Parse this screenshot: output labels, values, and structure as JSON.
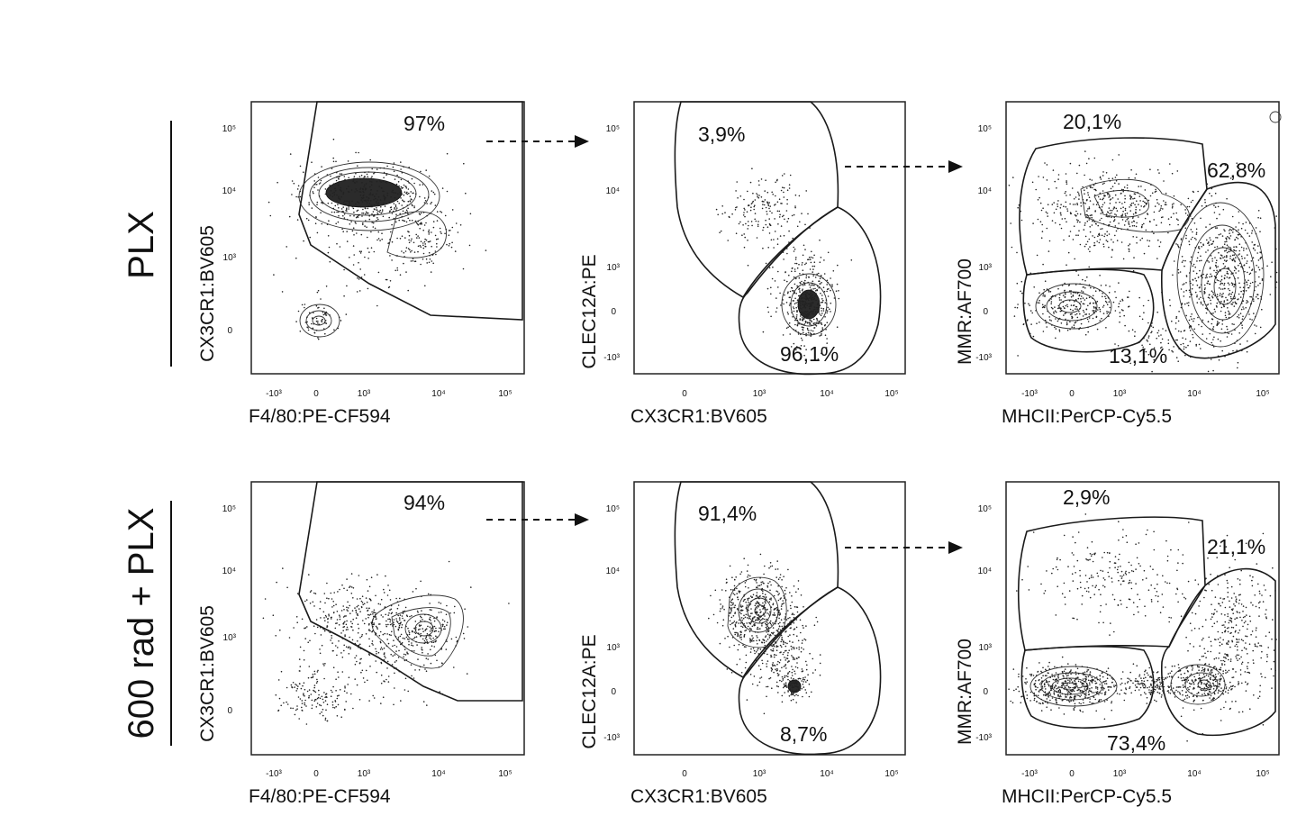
{
  "row_labels": [
    "PLX",
    "600 rad + PLX"
  ],
  "chart_data": [
    {
      "type": "scatter",
      "row": "PLX",
      "xlabel": "F4/80:PE-CF594",
      "ylabel": "CX3CR1:BV605",
      "x_ticks": [
        "-10³",
        "0",
        "10³",
        "10⁴",
        "10⁵"
      ],
      "y_ticks": [
        "0",
        "10³",
        "10⁴",
        "10⁵"
      ],
      "gates": [
        {
          "label": "97%",
          "value": 97
        }
      ]
    },
    {
      "type": "scatter",
      "row": "PLX",
      "xlabel": "CX3CR1:BV605",
      "ylabel": "CLEC12A:PE",
      "x_ticks": [
        "0",
        "10³",
        "10⁴",
        "10⁵"
      ],
      "y_ticks": [
        "-10³",
        "0",
        "10³",
        "10⁴",
        "10⁵"
      ],
      "gates": [
        {
          "label": "3,9%",
          "value": 3.9
        },
        {
          "label": "96,1%",
          "value": 96.1
        }
      ]
    },
    {
      "type": "scatter",
      "row": "PLX",
      "xlabel": "MHCII:PerCP-Cy5.5",
      "ylabel": "MMR:AF700",
      "x_ticks": [
        "-10³",
        "0",
        "10³",
        "10⁴",
        "10⁵"
      ],
      "y_ticks": [
        "-10³",
        "0",
        "10³",
        "10⁴",
        "10⁵"
      ],
      "gates": [
        {
          "label": "20,1%",
          "value": 20.1
        },
        {
          "label": "62,8%",
          "value": 62.8
        },
        {
          "label": "13,1%",
          "value": 13.1
        }
      ]
    },
    {
      "type": "scatter",
      "row": "600 rad + PLX",
      "xlabel": "F4/80:PE-CF594",
      "ylabel": "CX3CR1:BV605",
      "x_ticks": [
        "-10³",
        "0",
        "10³",
        "10⁴",
        "10⁵"
      ],
      "y_ticks": [
        "0",
        "10³",
        "10⁴",
        "10⁵"
      ],
      "gates": [
        {
          "label": "94%",
          "value": 94
        }
      ]
    },
    {
      "type": "scatter",
      "row": "600 rad + PLX",
      "xlabel": "CX3CR1:BV605",
      "ylabel": "CLEC12A:PE",
      "x_ticks": [
        "0",
        "10³",
        "10⁴",
        "10⁵"
      ],
      "y_ticks": [
        "-10³",
        "0",
        "10³",
        "10⁴",
        "10⁵"
      ],
      "gates": [
        {
          "label": "91,4%",
          "value": 91.4
        },
        {
          "label": "8,7%",
          "value": 8.7
        }
      ]
    },
    {
      "type": "scatter",
      "row": "600 rad + PLX",
      "xlabel": "MHCII:PerCP-Cy5.5",
      "ylabel": "MMR:AF700",
      "x_ticks": [
        "-10³",
        "0",
        "10³",
        "10⁴",
        "10⁵"
      ],
      "y_ticks": [
        "-10³",
        "0",
        "10³",
        "10⁴",
        "10⁵"
      ],
      "gates": [
        {
          "label": "2,9%",
          "value": 2.9
        },
        {
          "label": "21,1%",
          "value": 21.1
        },
        {
          "label": "73,4%",
          "value": 73.4
        }
      ]
    }
  ]
}
